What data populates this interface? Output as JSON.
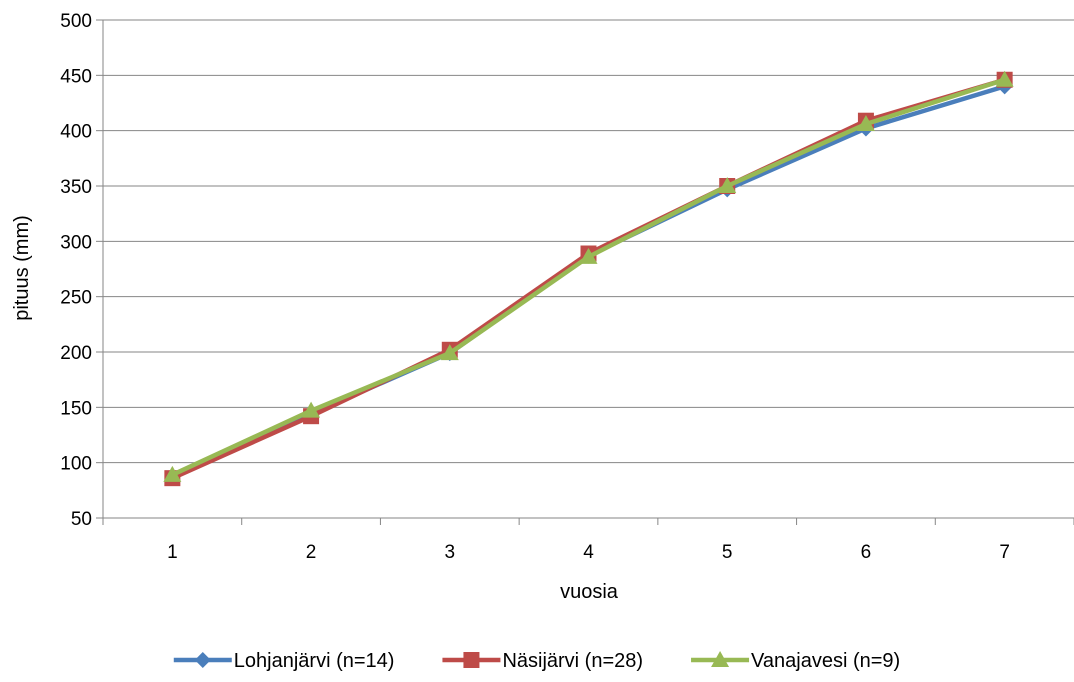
{
  "chart_data": {
    "type": "line",
    "title": "",
    "xlabel": "vuosia",
    "ylabel": "pituus (mm)",
    "categories": [
      "1",
      "2",
      "3",
      "4",
      "5",
      "6",
      "7"
    ],
    "ylim": [
      50,
      500
    ],
    "yticks": [
      "50",
      "100",
      "150",
      "200",
      "250",
      "300",
      "350",
      "400",
      "450",
      "500"
    ],
    "grid": true,
    "legend_position": "bottom",
    "series": [
      {
        "name": "Lohjanjärvi (n=14)",
        "color": "#4a7ebb",
        "marker": "diamond",
        "values": [
          88,
          144,
          199,
          287,
          347,
          402,
          440
        ]
      },
      {
        "name": "Näsijärvi (n=28)",
        "color": "#be4b48",
        "marker": "square",
        "values": [
          86,
          142,
          202,
          289,
          350,
          409,
          446
        ]
      },
      {
        "name": "Vanajavesi (n=9)",
        "color": "#98b954",
        "marker": "triangle",
        "values": [
          89,
          147,
          199,
          286,
          350,
          406,
          446
        ]
      }
    ]
  }
}
